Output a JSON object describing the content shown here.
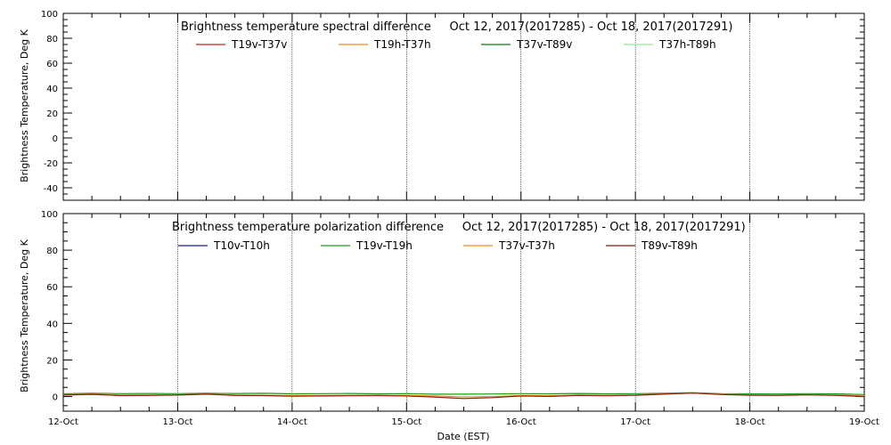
{
  "chart_data": [
    {
      "type": "line",
      "title": "Brightness temperature spectral difference     Oct 12, 2017(2017285) - Oct 18, 2017(2017291)",
      "ylabel": "Brightness Temperature, Deg K",
      "xlabel": "",
      "ylim": [
        -50,
        100
      ],
      "yticks": [
        -40,
        -20,
        0,
        20,
        40,
        60,
        80,
        100
      ],
      "xlim": [
        0,
        7
      ],
      "grid": "vertical dotted at day boundaries",
      "legend_placement": "top-center",
      "series": [
        {
          "name": "T19v-T37v",
          "color": "#cc2222",
          "x": [],
          "values": []
        },
        {
          "name": "T19h-T37h",
          "color": "#f08a1c",
          "x": [],
          "values": []
        },
        {
          "name": "T37v-T89v",
          "color": "#0a7a0a",
          "x": [],
          "values": []
        },
        {
          "name": "T37h-T89h",
          "color": "#90ee90",
          "x": [],
          "values": []
        }
      ]
    },
    {
      "type": "line",
      "title": "Brightness temperature polarization difference     Oct 12, 2017(2017285) - Oct 18, 2017(2017291)",
      "ylabel": "Brightness Temperature, Deg K",
      "xlabel": "Date (EST)",
      "ylim": [
        -8,
        100
      ],
      "yticks": [
        0,
        20,
        40,
        60,
        80,
        100
      ],
      "xlim": [
        0,
        7
      ],
      "xticks": [
        "12-Oct",
        "13-Oct",
        "14-Oct",
        "15-Oct",
        "16-Oct",
        "17-Oct",
        "18-Oct",
        "19-Oct"
      ],
      "grid": "vertical dotted at day boundaries",
      "legend_placement": "top-center",
      "series": [
        {
          "name": "T10v-T10h",
          "color": "#1a1aa0",
          "x": [],
          "values": []
        },
        {
          "name": "T19v-T19h",
          "color": "#1a9a1a",
          "x": [
            0,
            0.25,
            0.5,
            0.75,
            1,
            1.25,
            1.5,
            1.75,
            2,
            2.25,
            2.5,
            2.75,
            3,
            3.25,
            3.5,
            3.75,
            4,
            4.25,
            4.5,
            4.75,
            5,
            5.25,
            5.5,
            5.75,
            6,
            6.25,
            6.5,
            6.75,
            7
          ],
          "values": [
            1.5,
            1.8,
            1.6,
            1.7,
            1.6,
            1.8,
            1.7,
            1.8,
            1.5,
            1.6,
            1.7,
            1.5,
            1.6,
            1.3,
            1.3,
            1.4,
            1.6,
            1.5,
            1.7,
            1.5,
            1.6,
            1.8,
            2.1,
            1.6,
            1.5,
            1.4,
            1.6,
            1.5,
            1.1
          ]
        },
        {
          "name": "T37v-T37h",
          "color": "#f08a1c",
          "x": [
            0,
            0.25,
            0.5,
            0.75,
            1,
            1.25,
            1.5,
            1.75,
            2,
            2.25,
            2.5,
            2.75,
            3,
            3.25,
            3.5,
            3.75,
            4,
            4.25,
            4.5,
            4.75,
            5,
            5.25,
            5.5,
            5.75,
            6,
            6.25,
            6.5,
            6.75,
            7
          ],
          "values": [
            1.0,
            1.4,
            0.8,
            0.9,
            1.0,
            1.4,
            0.9,
            0.7,
            0.5,
            0.6,
            0.7,
            0.7,
            0.6,
            0.3,
            -0.2,
            0.0,
            0.6,
            0.4,
            0.8,
            0.7,
            0.9,
            1.5,
            2.0,
            1.3,
            0.9,
            0.8,
            1.1,
            0.8,
            0.3
          ]
        },
        {
          "name": "T89v-T89h",
          "color": "#8b1a1a",
          "x": [
            0,
            0.25,
            0.5,
            0.75,
            1,
            1.25,
            1.5,
            1.75,
            2,
            2.25,
            2.5,
            2.75,
            3,
            3.25,
            3.5,
            3.75,
            4,
            4.25,
            4.5,
            4.75,
            5,
            5.25,
            5.5,
            5.75,
            6,
            6.25,
            6.5,
            6.75,
            7
          ],
          "values": [
            0.8,
            1.2,
            0.5,
            0.6,
            0.8,
            1.3,
            0.6,
            0.5,
            0.2,
            0.3,
            0.4,
            0.5,
            0.3,
            -0.3,
            -1.1,
            -0.6,
            0.3,
            0.1,
            0.6,
            0.4,
            0.7,
            1.3,
            1.9,
            1.1,
            0.7,
            0.6,
            0.9,
            0.6,
            0.0
          ]
        }
      ]
    }
  ]
}
